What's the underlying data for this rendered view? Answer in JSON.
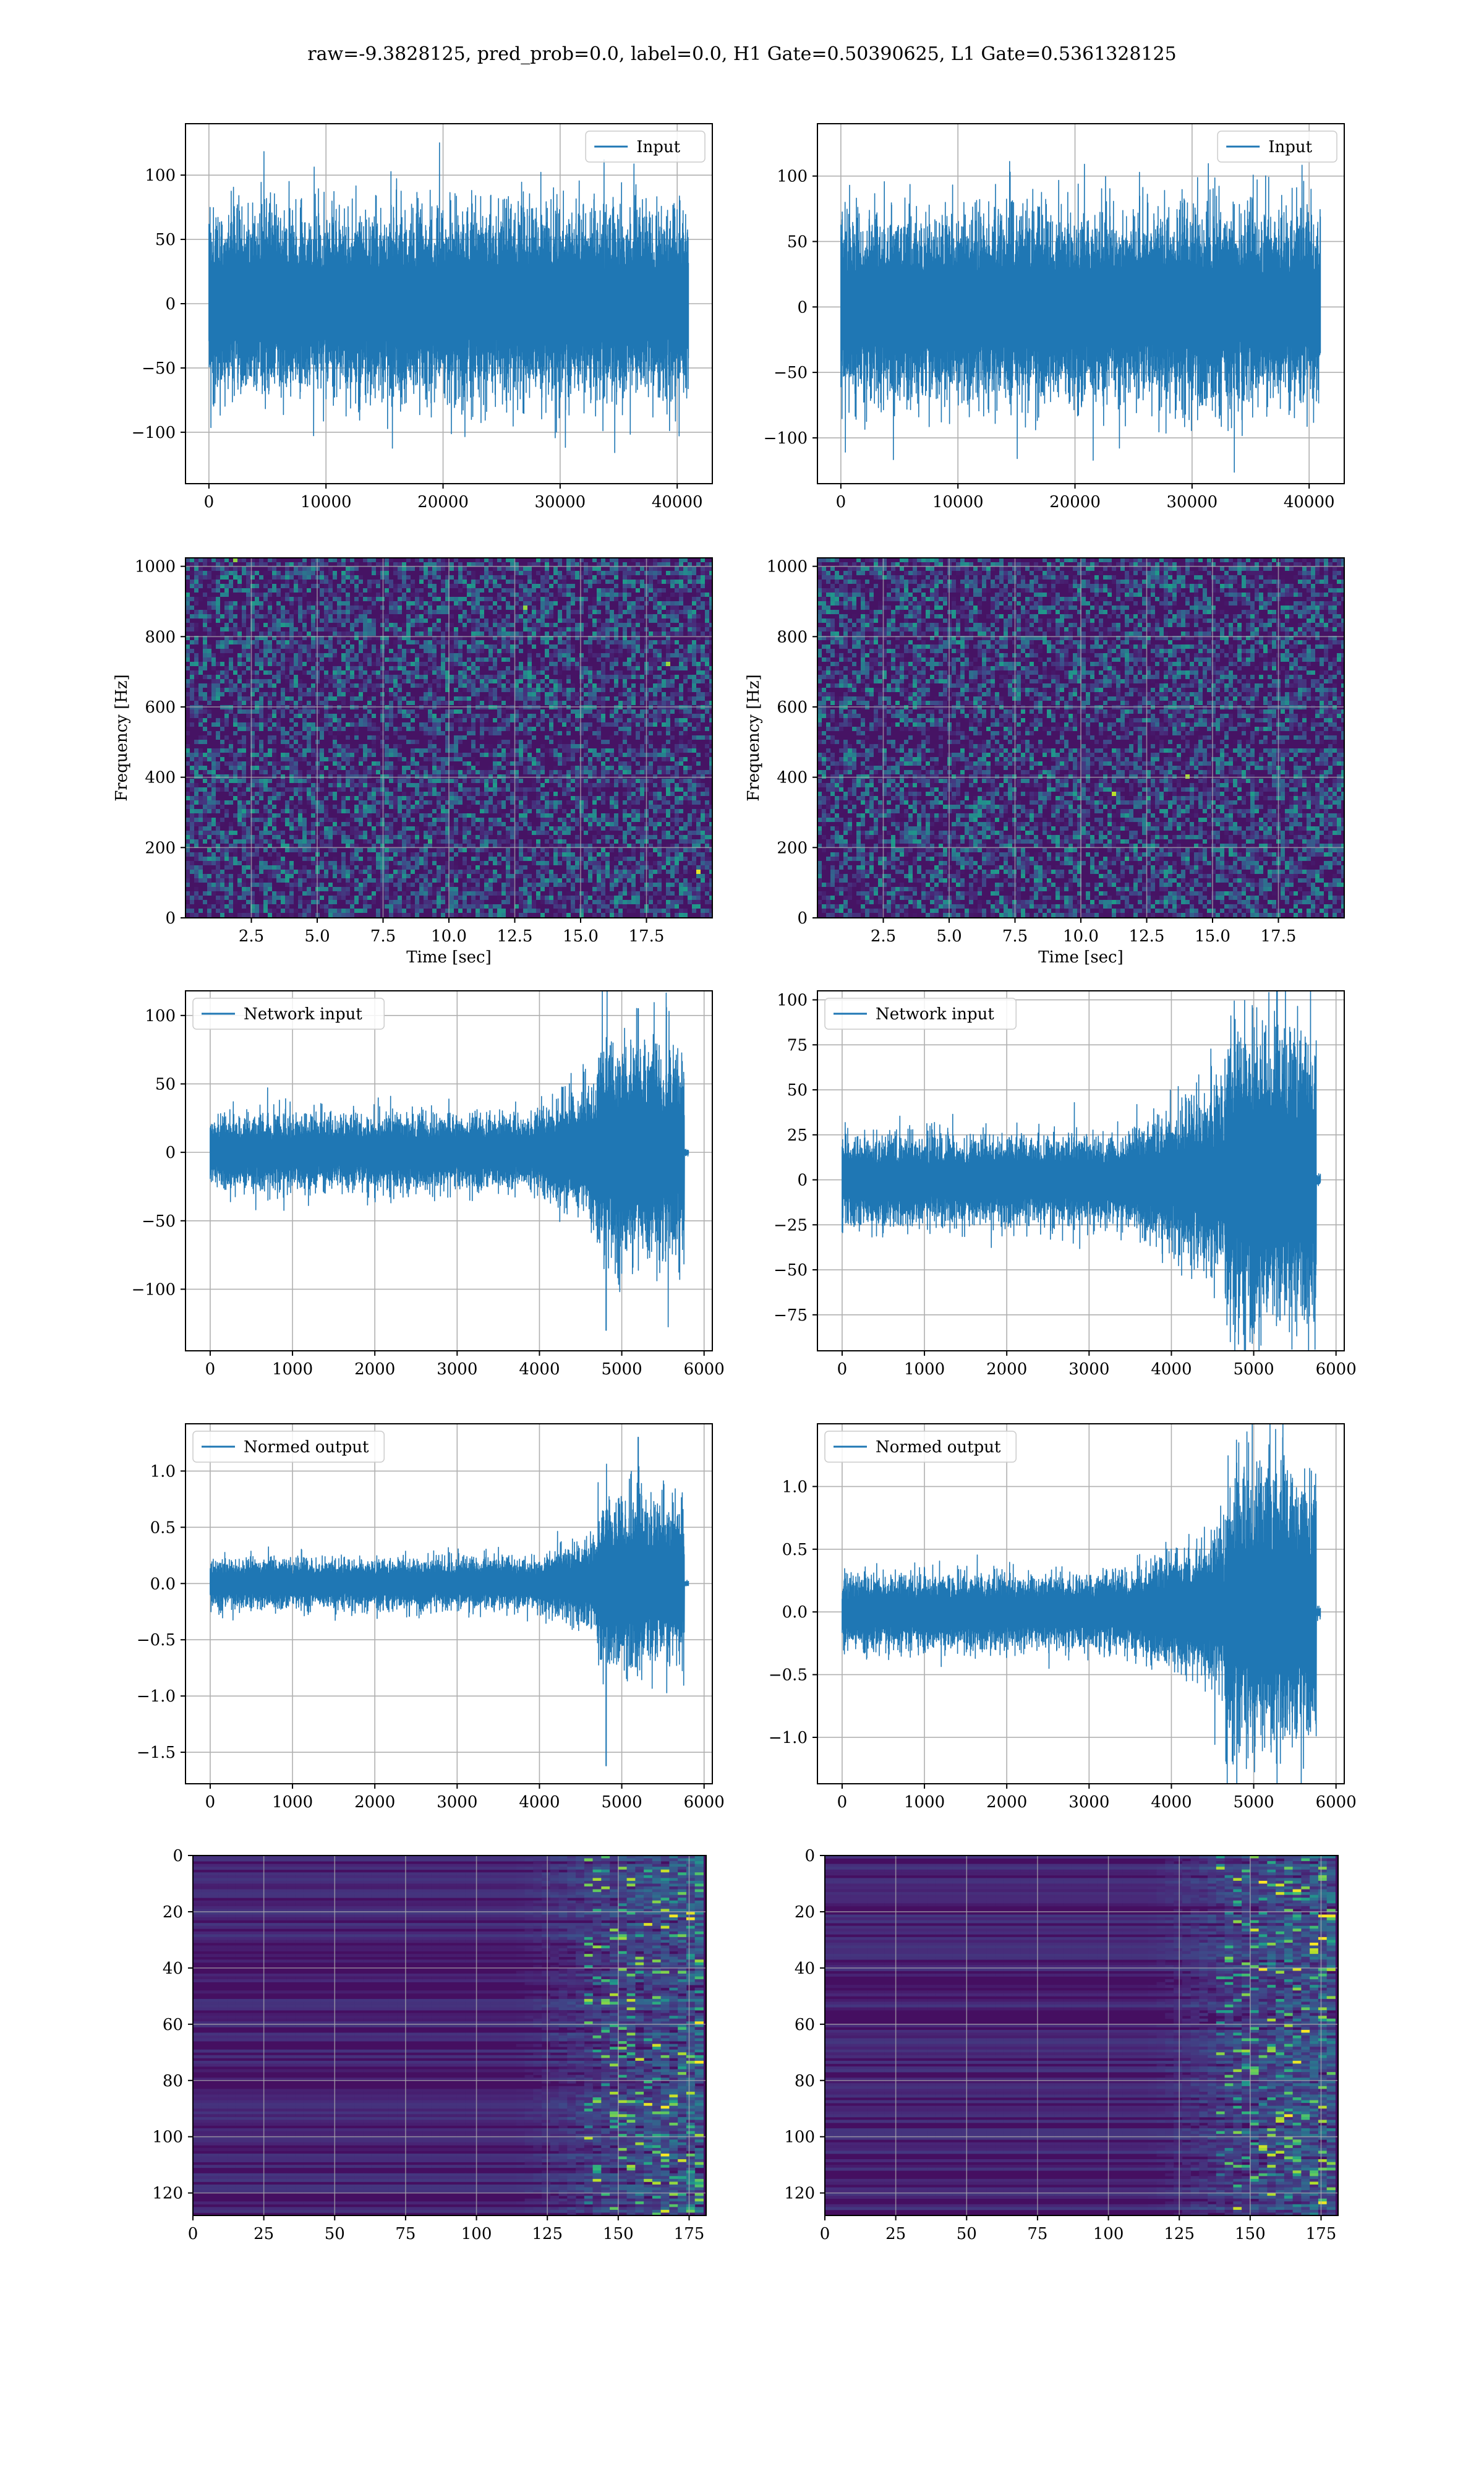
{
  "figure_title": "raw=-9.3828125, pred_prob=0.0, label=0.0, H1 Gate=0.50390625, L1 Gate=0.5361328125",
  "colors": {
    "line": "#1f77b4",
    "grid": "#b0b0b0",
    "axes": "#000000",
    "heat_low": "#440154",
    "heat_high": "#fde725"
  },
  "chart_data": [
    {
      "id": "h1-input",
      "type": "line",
      "title": "",
      "xlabel": "",
      "ylabel": "",
      "series": [
        {
          "name": "Input",
          "n_points": 40960,
          "envelope": "stationary noise, bulk +/-40, peaks +/-120"
        }
      ],
      "xlim": [
        -2000,
        43000
      ],
      "ylim": [
        -140,
        140
      ],
      "xticks": [
        0,
        10000,
        20000,
        30000,
        40000
      ],
      "yticks": [
        -100,
        -50,
        0,
        50,
        100
      ],
      "xtick_labels": [
        "0",
        "10000",
        "20000",
        "30000",
        "40000"
      ],
      "ytick_labels": [
        "−100",
        "−50",
        "0",
        "50",
        "100"
      ],
      "legend": "top-right",
      "grid": true
    },
    {
      "id": "l1-input",
      "type": "line",
      "title": "",
      "xlabel": "",
      "ylabel": "",
      "series": [
        {
          "name": "Input",
          "n_points": 40960,
          "envelope": "stationary noise, bulk +/-40, peaks +/-130"
        }
      ],
      "xlim": [
        -2000,
        43000
      ],
      "ylim": [
        -135,
        140
      ],
      "xticks": [
        0,
        10000,
        20000,
        30000,
        40000
      ],
      "yticks": [
        -100,
        -50,
        0,
        50,
        100
      ],
      "xtick_labels": [
        "0",
        "10000",
        "20000",
        "30000",
        "40000"
      ],
      "ytick_labels": [
        "−100",
        "−50",
        "0",
        "50",
        "100"
      ],
      "legend": "top-right",
      "grid": true
    },
    {
      "id": "h1-spectrogram",
      "type": "heatmap",
      "title": "",
      "xlabel": "Time [sec]",
      "ylabel": "Frequency [Hz]",
      "xlim": [
        0,
        20
      ],
      "ylim": [
        0,
        1024
      ],
      "xticks": [
        2.5,
        5.0,
        7.5,
        10.0,
        12.5,
        15.0,
        17.5
      ],
      "yticks": [
        0,
        200,
        400,
        600,
        800,
        1000
      ],
      "xtick_labels": [
        "2.5",
        "5.0",
        "7.5",
        "10.0",
        "12.5",
        "15.0",
        "17.5"
      ],
      "ytick_labels": [
        "0",
        "200",
        "400",
        "600",
        "800",
        "1000"
      ],
      "colormap": "viridis",
      "grid": true
    },
    {
      "id": "l1-spectrogram",
      "type": "heatmap",
      "title": "",
      "xlabel": "Time [sec]",
      "ylabel": "Frequency [Hz]",
      "xlim": [
        0,
        20
      ],
      "ylim": [
        0,
        1024
      ],
      "xticks": [
        2.5,
        5.0,
        7.5,
        10.0,
        12.5,
        15.0,
        17.5
      ],
      "yticks": [
        0,
        200,
        400,
        600,
        800,
        1000
      ],
      "xtick_labels": [
        "2.5",
        "5.0",
        "7.5",
        "10.0",
        "12.5",
        "15.0",
        "17.5"
      ],
      "ytick_labels": [
        "0",
        "200",
        "400",
        "600",
        "800",
        "1000"
      ],
      "colormap": "viridis",
      "grid": true
    },
    {
      "id": "h1-network-input",
      "type": "line",
      "title": "",
      "xlabel": "",
      "ylabel": "",
      "series": [
        {
          "name": "Network input",
          "n_points": 5800,
          "envelope": "+/-15 until ~4000, growing to +/-80 at 4800-5750, min -130 near 4810, max 105 near 5200, flat after 5750"
        }
      ],
      "xlim": [
        -300,
        6100
      ],
      "ylim": [
        -145,
        118
      ],
      "xticks": [
        0,
        1000,
        2000,
        3000,
        4000,
        5000,
        6000
      ],
      "yticks": [
        -100,
        -50,
        0,
        50,
        100
      ],
      "xtick_labels": [
        "0",
        "1000",
        "2000",
        "3000",
        "4000",
        "5000",
        "6000"
      ],
      "ytick_labels": [
        "−100",
        "−50",
        "0",
        "50",
        "100"
      ],
      "legend": "top-left",
      "grid": true
    },
    {
      "id": "l1-network-input",
      "type": "line",
      "title": "",
      "xlabel": "",
      "ylabel": "",
      "series": [
        {
          "name": "Network input",
          "n_points": 5800,
          "envelope": "+/-15 until ~3400, growing to +/-90 at 4700-5750, flat after 5750"
        }
      ],
      "xlim": [
        -300,
        6100
      ],
      "ylim": [
        -95,
        105
      ],
      "xticks": [
        0,
        1000,
        2000,
        3000,
        4000,
        5000,
        6000
      ],
      "yticks": [
        -75,
        -50,
        -25,
        0,
        25,
        50,
        75,
        100
      ],
      "xtick_labels": [
        "0",
        "1000",
        "2000",
        "3000",
        "4000",
        "5000",
        "6000"
      ],
      "ytick_labels": [
        "−75",
        "−50",
        "−25",
        "0",
        "25",
        "50",
        "75",
        "100"
      ],
      "legend": "top-left",
      "grid": true
    },
    {
      "id": "h1-normed-output",
      "type": "line",
      "title": "",
      "xlabel": "",
      "ylabel": "",
      "series": [
        {
          "name": "Normed output",
          "n_points": 5800,
          "envelope": "+/-0.12 until ~4000, growing to +/-0.8 at 4800-5750, min -1.62 near 4810, max 1.3 near 5200"
        }
      ],
      "xlim": [
        -300,
        6100
      ],
      "ylim": [
        -1.78,
        1.42
      ],
      "xticks": [
        0,
        1000,
        2000,
        3000,
        4000,
        5000,
        6000
      ],
      "yticks": [
        -1.5,
        -1.0,
        -0.5,
        0.0,
        0.5,
        1.0
      ],
      "xtick_labels": [
        "0",
        "1000",
        "2000",
        "3000",
        "4000",
        "5000",
        "6000"
      ],
      "ytick_labels": [
        "−1.5",
        "−1.0",
        "−0.5",
        "0.0",
        "0.5",
        "1.0"
      ],
      "legend": "top-left",
      "grid": true
    },
    {
      "id": "l1-normed-output",
      "type": "line",
      "title": "",
      "xlabel": "",
      "ylabel": "",
      "series": [
        {
          "name": "Normed output",
          "n_points": 5800,
          "envelope": "+/-0.18 until ~3400, growing to +/-1.2 at 4700-5750, max 1.38, min -1.25"
        }
      ],
      "xlim": [
        -300,
        6100
      ],
      "ylim": [
        -1.37,
        1.5
      ],
      "xticks": [
        0,
        1000,
        2000,
        3000,
        4000,
        5000,
        6000
      ],
      "yticks": [
        -1.0,
        -0.5,
        0.0,
        0.5,
        1.0
      ],
      "xtick_labels": [
        "0",
        "1000",
        "2000",
        "3000",
        "4000",
        "5000",
        "6000"
      ],
      "ytick_labels": [
        "−1.0",
        "−0.5",
        "0.0",
        "0.5",
        "1.0"
      ],
      "legend": "top-left",
      "grid": true
    },
    {
      "id": "h1-activation-map",
      "type": "heatmap",
      "title": "",
      "xlabel": "",
      "ylabel": "",
      "xlim": [
        0,
        181
      ],
      "ylim": [
        128,
        0
      ],
      "xticks": [
        0,
        25,
        50,
        75,
        100,
        125,
        150,
        175
      ],
      "yticks": [
        0,
        20,
        40,
        60,
        80,
        100,
        120
      ],
      "xtick_labels": [
        "0",
        "25",
        "50",
        "75",
        "100",
        "125",
        "150",
        "175"
      ],
      "ytick_labels": [
        "0",
        "20",
        "40",
        "60",
        "80",
        "100",
        "120"
      ],
      "colormap": "viridis",
      "grid": true
    },
    {
      "id": "l1-activation-map",
      "type": "heatmap",
      "title": "",
      "xlabel": "",
      "ylabel": "",
      "xlim": [
        0,
        181
      ],
      "ylim": [
        128,
        0
      ],
      "xticks": [
        0,
        25,
        50,
        75,
        100,
        125,
        150,
        175
      ],
      "yticks": [
        0,
        20,
        40,
        60,
        80,
        100,
        120
      ],
      "xtick_labels": [
        "0",
        "25",
        "50",
        "75",
        "100",
        "125",
        "150",
        "175"
      ],
      "ytick_labels": [
        "0",
        "20",
        "40",
        "60",
        "80",
        "100",
        "120"
      ],
      "colormap": "viridis",
      "grid": true
    }
  ]
}
